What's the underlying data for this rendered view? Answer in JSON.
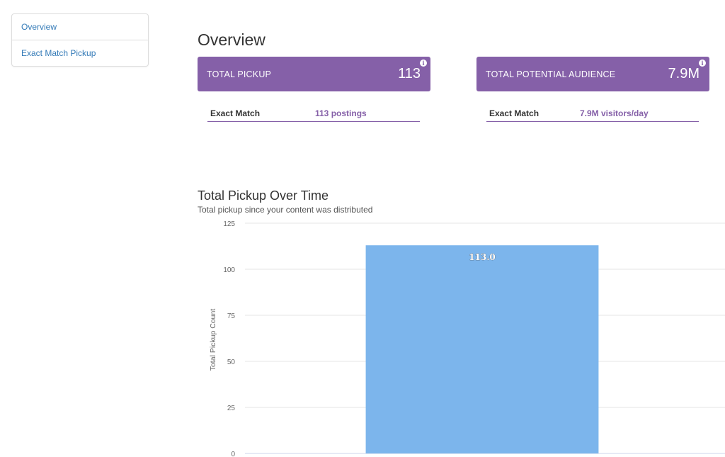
{
  "sidebar": {
    "items": [
      {
        "label": "Overview"
      },
      {
        "label": "Exact Match Pickup"
      }
    ]
  },
  "overview": {
    "title": "Overview",
    "cards": [
      {
        "label": "TOTAL PICKUP",
        "value": "113",
        "info": "i",
        "row_label": "Exact Match",
        "row_value": "113 postings"
      },
      {
        "label": "TOTAL POTENTIAL AUDIENCE",
        "value": "7.9M",
        "info": "i",
        "row_label": "Exact Match",
        "row_value": "7.9M visitors/day"
      }
    ]
  },
  "colors": {
    "accent": "#8560a8",
    "bar": "#7cb5ec",
    "link": "#337ab7"
  },
  "chart": {
    "title": "Total Pickup Over Time",
    "subtitle": "Total pickup since your content was distributed"
  },
  "chart_data": {
    "type": "bar",
    "title": "Total Pickup Over Time",
    "subtitle": "Total pickup since your content was distributed",
    "xlabel": "",
    "ylabel": "Total Pickup Count",
    "categories": [
      ""
    ],
    "values": [
      113.0
    ],
    "data_labels": [
      "113.0"
    ],
    "ylim": [
      0,
      125
    ],
    "yticks": [
      0,
      25,
      50,
      75,
      100,
      125
    ],
    "grid": true,
    "legend": "none"
  }
}
